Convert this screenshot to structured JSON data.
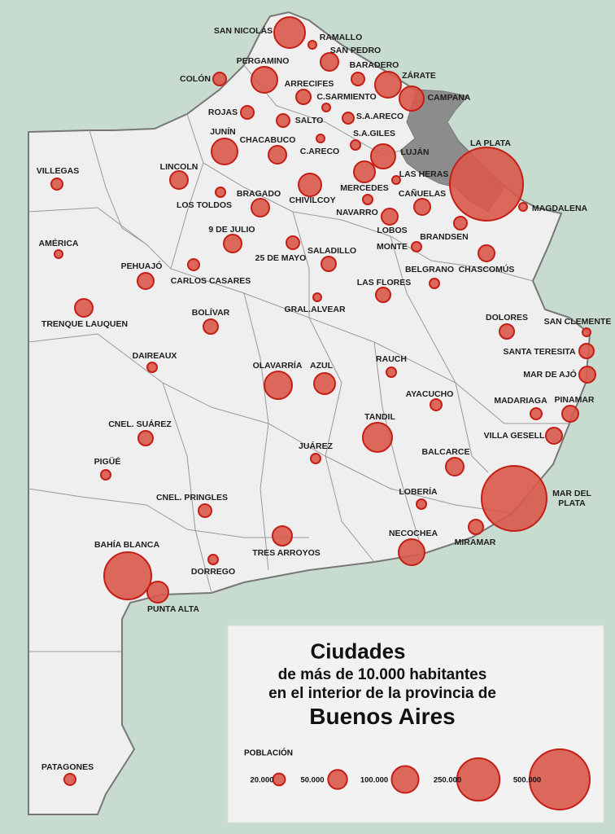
{
  "map": {
    "cities": [
      "SAN NICOLÁS",
      "RAMALLO",
      "SAN PEDRO",
      "PERGAMINO",
      "BARADERO",
      "ZÁRATE",
      "COLÓN",
      "ARRECIFES",
      "CAMPANA",
      "C.SARMIENTO",
      "ROJAS",
      "S.A.ARECO",
      "SALTO",
      "JUNÍN",
      "S.A.GILES",
      "CHACABUCO",
      "C.ARECO",
      "LUJÁN",
      "LA PLATA",
      "VILLEGAS",
      "LINCOLN",
      "MERCEDES",
      "LAS HERAS",
      "CHIVILCOY",
      "LOS TOLDOS",
      "BRAGADO",
      "CAÑUELAS",
      "NAVARRO",
      "MAGDALENA",
      "LOBOS",
      "BRANDSEN",
      "9 DE JULIO",
      "AMÉRICA",
      "25 DE MAYO",
      "SALADILLO",
      "MONTE",
      "CHASCOMÚS",
      "PEHUAJÓ",
      "CARLOS CASARES",
      "BELGRANO",
      "LAS FLORES",
      "GRAL.ALVEAR",
      "TRENQUE LAUQUEN",
      "BOLÍVAR",
      "DOLORES",
      "SAN CLEMENTE",
      "SANTA TERESITA",
      "DAIREAUX",
      "OLAVARRÍA",
      "AZUL",
      "RAUCH",
      "MAR DE AJÓ",
      "AYACUCHO",
      "MADARIAGA",
      "PINAMAR",
      "TANDIL",
      "CNEL. SUÁREZ",
      "VILLA GESELL",
      "JUÁREZ",
      "BALCARCE",
      "PIGÜÉ",
      "MAR DEL PLATA",
      "LOBERÍA",
      "CNEL. PRINGLES",
      "MIRAMAR",
      "TRES ARROYOS",
      "NECOCHEA",
      "BAHÍA BLANCA",
      "DORREGO",
      "PUNTA ALTA",
      "PATAGONES"
    ],
    "legend": {
      "title": "Ciudades",
      "subtitle_lines": [
        "de más de 10.000 habitantes",
        "en el interior de la provincia de"
      ],
      "heading": "Buenos Aires",
      "population_label": "POBLACIÓN",
      "sizes": [
        {
          "value": 20000,
          "label": "20.000"
        },
        {
          "value": 50000,
          "label": "50.000"
        },
        {
          "value": 100000,
          "label": "100.000"
        },
        {
          "value": 250000,
          "label": "250.000"
        },
        {
          "value": 500000,
          "label": "500.000"
        }
      ]
    }
  }
}
